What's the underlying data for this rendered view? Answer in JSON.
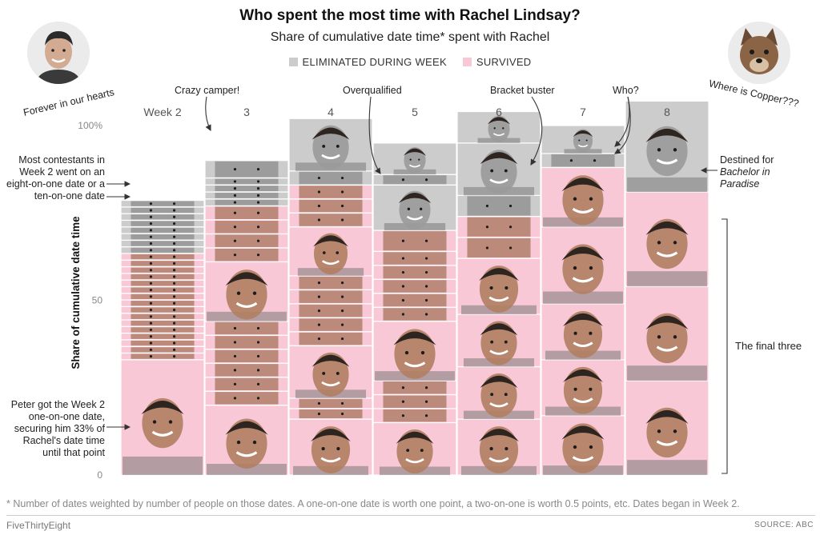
{
  "header": {
    "title": "Who spent the most time with Rachel Lindsay?",
    "subtitle": "Share of cumulative date time* spent with Rachel"
  },
  "legend": [
    {
      "label": "ELIMINATED DURING WEEK",
      "color": "#cccccc"
    },
    {
      "label": "SURVIVED",
      "color": "#f9c8d6"
    }
  ],
  "colors": {
    "eliminated": "#cccccc",
    "survived": "#f9c8d6",
    "face_shadow": "#8a6a58",
    "face_skin": "#d9b7a1"
  },
  "avatars": {
    "left_caption": "Forever in our hearts",
    "right_caption": "Where is Copper???"
  },
  "annotations": {
    "crazy_camper": "Crazy camper!",
    "overqualified": "Overqualified",
    "bracket_buster": "Bracket buster",
    "who": "Who?",
    "most_contestants": "Most contestants in Week 2 went on an eight-on-one date or a ten-on-one date",
    "peter": "Peter got the Week 2 one-on-one date, securing him 33% of Rachel's date time until that point",
    "destined_line1": "Destined for",
    "destined_line2": "Bachelor in Paradise",
    "final_three": "The final three"
  },
  "chart_data": {
    "type": "bar",
    "title": "Who spent the most time with Rachel Lindsay?",
    "subtitle": "Share of cumulative date time* spent with Rachel",
    "stacked": true,
    "xlabel": "",
    "ylabel": "Share of cumulative date time",
    "ylim": [
      0,
      100
    ],
    "ytick_labels": [
      "0",
      "50",
      "100%"
    ],
    "ytick_values": [
      0,
      50,
      100
    ],
    "categories": [
      "Week 2",
      "3",
      "4",
      "5",
      "6",
      "7",
      "8"
    ],
    "series_by_week": [
      {
        "week": "Week 2",
        "survived": [
          33,
          1.9,
          1.9,
          1.9,
          1.9,
          1.9,
          1.9,
          1.9,
          1.9,
          1.9,
          1.9,
          1.9,
          1.9,
          1.9,
          1.9,
          1.9,
          1.9
        ],
        "eliminated": [
          1.9,
          1.9,
          1.9,
          1.9,
          1.9,
          1.9,
          1.9,
          1.9
        ]
      },
      {
        "week": "3",
        "survived": [
          20,
          4,
          4,
          4,
          4,
          4,
          4,
          17,
          4,
          4,
          4,
          4
        ],
        "eliminated": [
          2,
          2,
          2,
          2,
          5
        ]
      },
      {
        "week": "4",
        "survived": [
          16,
          3,
          3,
          15,
          4,
          4,
          4,
          4,
          4,
          14,
          4,
          4,
          4
        ],
        "eliminated": [
          4,
          15
        ]
      },
      {
        "week": "5",
        "survived": [
          15,
          4,
          4,
          4,
          17,
          4,
          4,
          4,
          4,
          4,
          6
        ],
        "eliminated": [
          13,
          3,
          9
        ]
      },
      {
        "week": "6",
        "survived": [
          16,
          15,
          15,
          16,
          6,
          6
        ],
        "eliminated": [
          6,
          15,
          9
        ]
      },
      {
        "week": "7",
        "survived": [
          17,
          16,
          16,
          22,
          17
        ],
        "eliminated": [
          4,
          8
        ]
      },
      {
        "week": "8",
        "survived": [
          27,
          27,
          27
        ],
        "eliminated": [
          26
        ]
      }
    ],
    "footnote": "* Number of dates weighted by number of people on those dates. A one-on-one date is worth one point, a two-on-one is worth 0.5 points, etc. Dates began in Week 2.",
    "source": "SOURCE: ABC",
    "credit": "FiveThirtyEight"
  }
}
